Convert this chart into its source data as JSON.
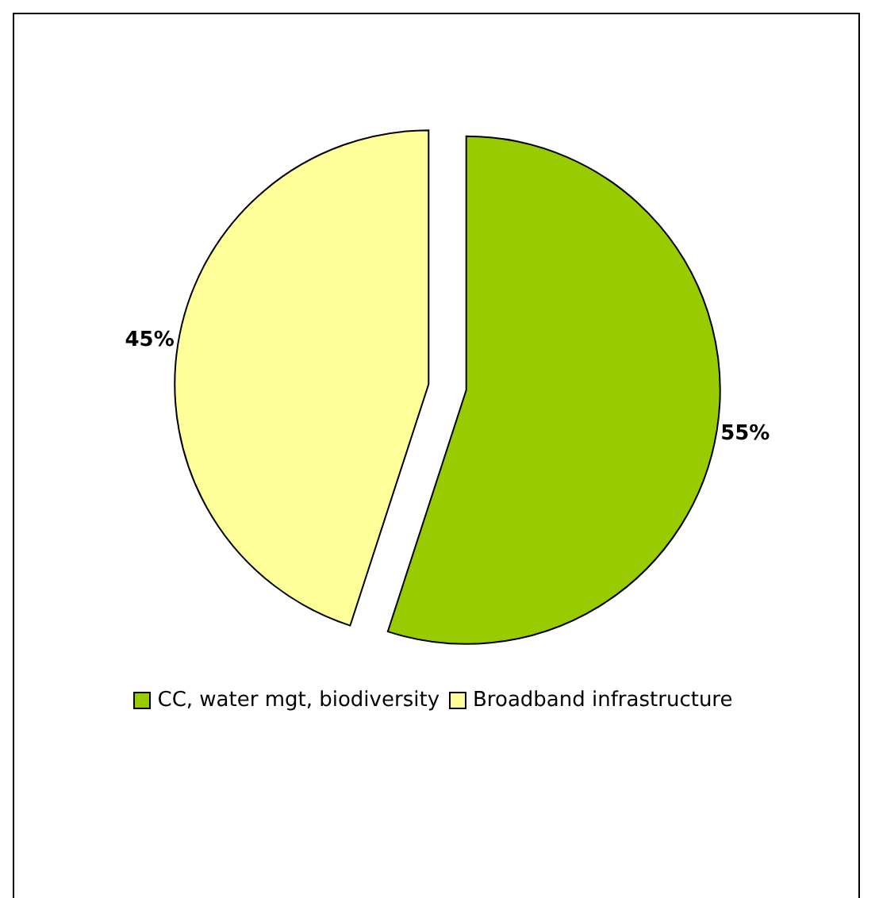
{
  "chart_data": {
    "type": "pie",
    "categories": [
      "CC, water mgt, biodiversity",
      "Broadband infrastructure"
    ],
    "values": [
      55,
      45
    ],
    "colors": [
      "#99cc00",
      "#ffff99"
    ],
    "value_labels": [
      "55%",
      "45%"
    ],
    "legend": "bottom"
  }
}
